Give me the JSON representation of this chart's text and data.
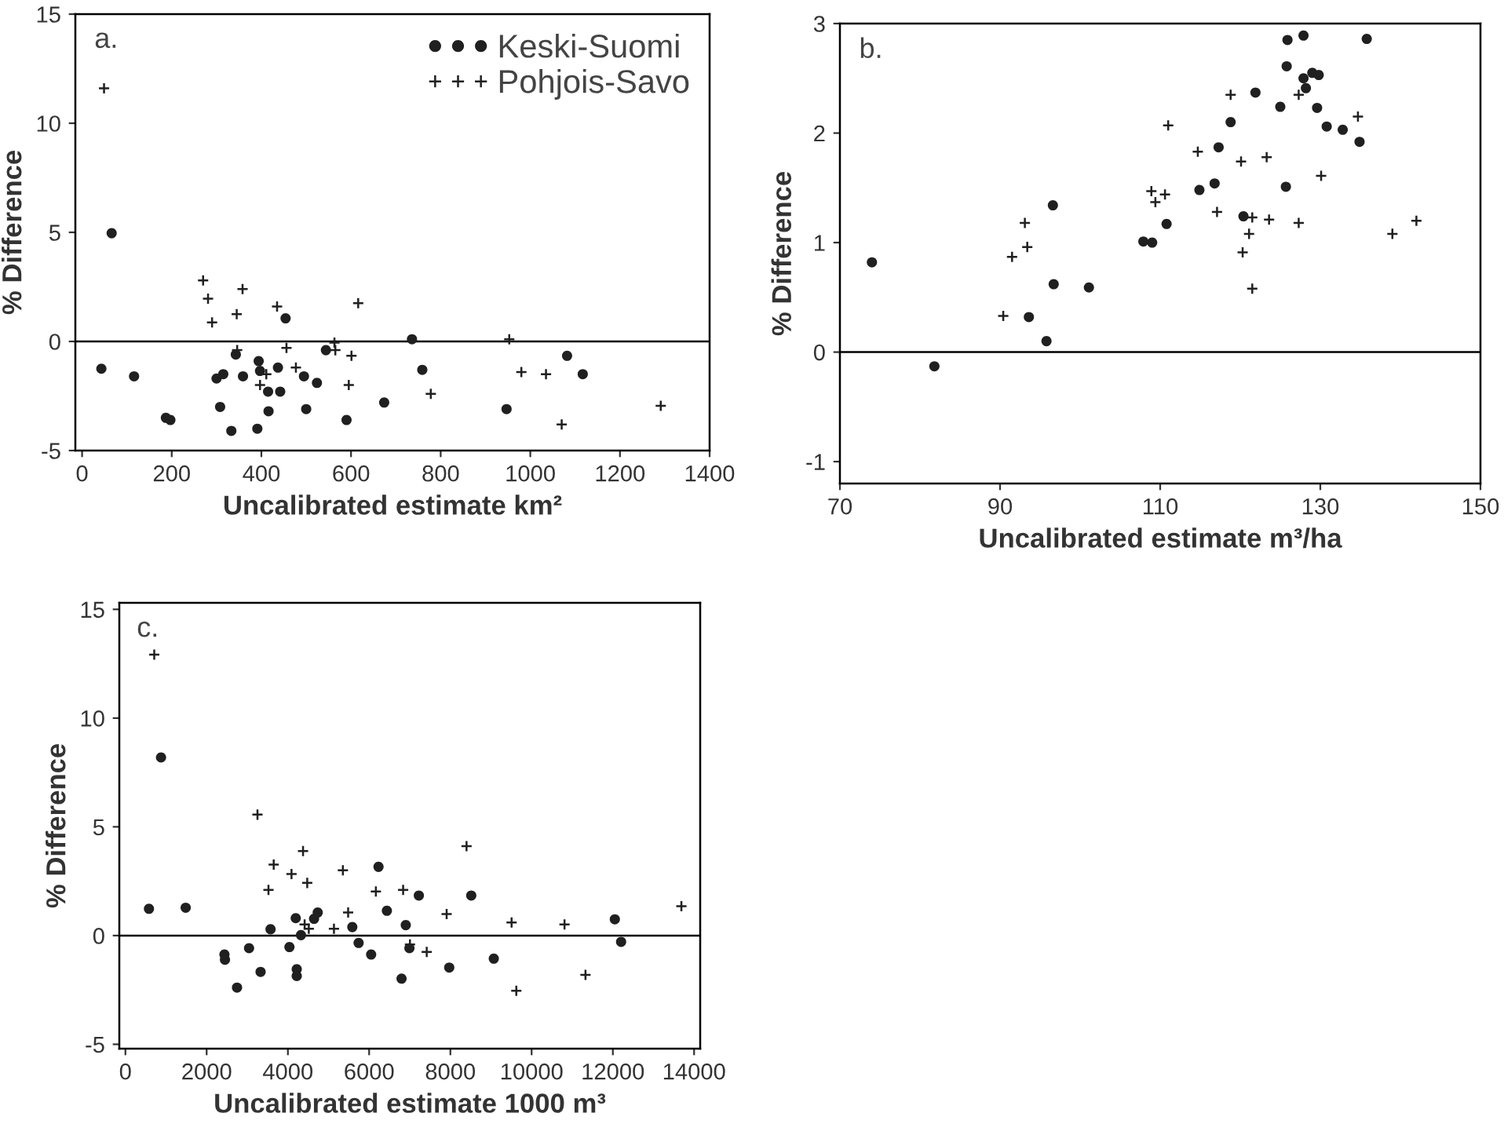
{
  "chart_data": [
    {
      "type": "scatter",
      "title": "a.",
      "xlabel": "Uncalibrated estimate km²",
      "ylabel": "% Difference",
      "xlim": [
        -15,
        1400
      ],
      "ylim": [
        -5,
        15
      ],
      "xticks": [
        0,
        200,
        400,
        600,
        800,
        1000,
        1200,
        1400
      ],
      "yticks": [
        -5,
        0,
        5,
        10,
        15
      ],
      "legend": "top right",
      "grid": false,
      "ref_lines": [
        {
          "axis": "y",
          "value": 0,
          "color": "#000000"
        }
      ],
      "series": [
        {
          "name": "Keski-Suomi",
          "color": "#202020",
          "marker": "circle",
          "x": [
            43,
            66,
            116,
            187,
            197,
            300,
            315,
            308,
            333,
            343,
            359,
            391,
            394,
            397,
            415,
            416,
            437,
            442,
            454,
            495,
            500,
            524,
            544,
            590,
            674,
            736,
            759,
            947,
            1082,
            1117
          ],
          "values": [
            -1.25,
            4.96,
            -1.6,
            -3.5,
            -3.6,
            -1.7,
            -1.5,
            -3.0,
            -4.1,
            -0.6,
            -1.6,
            -4.0,
            -0.9,
            -1.35,
            -2.3,
            -3.2,
            -1.2,
            -2.3,
            1.06,
            -1.6,
            -3.1,
            -1.9,
            -0.4,
            -3.6,
            -2.8,
            0.1,
            -1.3,
            -3.1,
            -0.66,
            -1.5
          ]
        },
        {
          "name": "Pohjois-Savo",
          "color": "#202020",
          "marker": "cross",
          "x": [
            49,
            270,
            281,
            290,
            345,
            358,
            346,
            397,
            411,
            435,
            456,
            477,
            563,
            565,
            601,
            595,
            616,
            778,
            953,
            980,
            1035,
            1070,
            1291
          ],
          "values": [
            11.6,
            2.8,
            1.96,
            0.87,
            1.25,
            2.4,
            -0.4,
            -2.0,
            -1.5,
            1.6,
            -0.3,
            -1.2,
            -0.05,
            -0.4,
            -0.66,
            -2.0,
            1.75,
            -2.4,
            0.1,
            -1.4,
            -1.5,
            -3.8,
            -2.95
          ]
        }
      ]
    },
    {
      "type": "scatter",
      "title": "b.",
      "xlabel": "Uncalibrated estimate m³/ha",
      "ylabel": "% Difference",
      "xlim": [
        70,
        150
      ],
      "ylim": [
        -1.2,
        3
      ],
      "xticks": [
        70,
        90,
        110,
        130,
        150
      ],
      "yticks": [
        -1,
        0,
        1,
        2,
        3
      ],
      "grid": false,
      "ref_lines": [
        {
          "axis": "y",
          "value": 0,
          "color": "#000000"
        }
      ],
      "series": [
        {
          "color": "#202020",
          "marker": "circle",
          "x": [
            74.0,
            81.8,
            93.6,
            95.8,
            96.6,
            96.7,
            101.1,
            107.9,
            109.0,
            110.8,
            114.9,
            116.8,
            117.3,
            118.8,
            120.4,
            121.9,
            125.0,
            125.7,
            125.8,
            125.9,
            127.9,
            127.9,
            128.2,
            129.0,
            129.8,
            129.6,
            130.8,
            132.8,
            134.9,
            135.8
          ],
          "values": [
            0.82,
            -0.13,
            0.32,
            0.1,
            1.34,
            0.62,
            0.59,
            1.01,
            1.0,
            1.17,
            1.48,
            1.54,
            1.87,
            2.1,
            1.24,
            2.37,
            2.24,
            1.51,
            2.61,
            2.85,
            2.5,
            2.89,
            2.41,
            2.55,
            2.53,
            2.23,
            2.06,
            2.03,
            1.92,
            2.86
          ]
        },
        {
          "color": "#202020",
          "marker": "cross",
          "x": [
            90.4,
            91.5,
            93.1,
            93.4,
            108.9,
            109.4,
            110.6,
            111.0,
            114.7,
            117.1,
            118.8,
            120.1,
            120.3,
            121.1,
            121.5,
            121.5,
            123.3,
            123.6,
            127.3,
            127.3,
            130.1,
            134.7,
            139.0,
            142.0
          ],
          "values": [
            0.33,
            0.87,
            1.18,
            0.96,
            1.47,
            1.37,
            1.44,
            2.07,
            1.83,
            1.28,
            2.35,
            1.74,
            0.91,
            1.08,
            0.58,
            1.23,
            1.78,
            1.21,
            2.35,
            1.18,
            1.61,
            2.15,
            1.08,
            1.2
          ]
        }
      ]
    },
    {
      "type": "scatter",
      "title": "c.",
      "xlabel": "Uncalibrated estimate 1000 m³",
      "ylabel": "% Difference",
      "xlim": [
        -150,
        14150
      ],
      "ylim": [
        -5.2,
        15.3
      ],
      "xticks": [
        0,
        2000,
        4000,
        6000,
        8000,
        10000,
        12000,
        14000
      ],
      "yticks": [
        -5,
        0,
        5,
        10,
        15
      ],
      "grid": false,
      "ref_lines": [
        {
          "axis": "y",
          "value": 0,
          "color": "#000000"
        }
      ],
      "series": [
        {
          "color": "#202020",
          "marker": "circle",
          "x": [
            580,
            877,
            1484,
            2438,
            2451,
            2748,
            3044,
            3328,
            3573,
            4038,
            4193,
            4218,
            4218,
            4322,
            4644,
            4734,
            5586,
            5741,
            6050,
            6231,
            6437,
            6798,
            6902,
            6992,
            7224,
            7972,
            8514,
            9069,
            12049,
            12203
          ],
          "values": [
            1.23,
            8.19,
            1.28,
            -0.87,
            -1.11,
            -2.39,
            -0.58,
            -1.67,
            0.29,
            -0.53,
            0.8,
            -1.55,
            -1.86,
            0.02,
            0.77,
            1.06,
            0.39,
            -0.34,
            -0.87,
            3.16,
            1.14,
            -1.98,
            0.48,
            -0.58,
            1.84,
            -1.47,
            1.84,
            -1.06,
            0.75,
            -0.29
          ]
        },
        {
          "color": "#202020",
          "marker": "cross",
          "x": [
            710,
            3251,
            3522,
            3651,
            4089,
            4373,
            4412,
            4476,
            4515,
            5134,
            5354,
            5483,
            6166,
            6837,
            7005,
            7418,
            7908,
            8398,
            9507,
            9623,
            10810,
            11326,
            13687
          ],
          "values": [
            12.92,
            5.56,
            2.1,
            3.26,
            2.83,
            3.89,
            0.51,
            2.42,
            0.31,
            0.31,
            3.0,
            1.06,
            2.03,
            2.1,
            -0.41,
            -0.75,
            0.99,
            4.11,
            0.6,
            -2.54,
            0.51,
            -1.81,
            1.35
          ]
        }
      ]
    }
  ]
}
